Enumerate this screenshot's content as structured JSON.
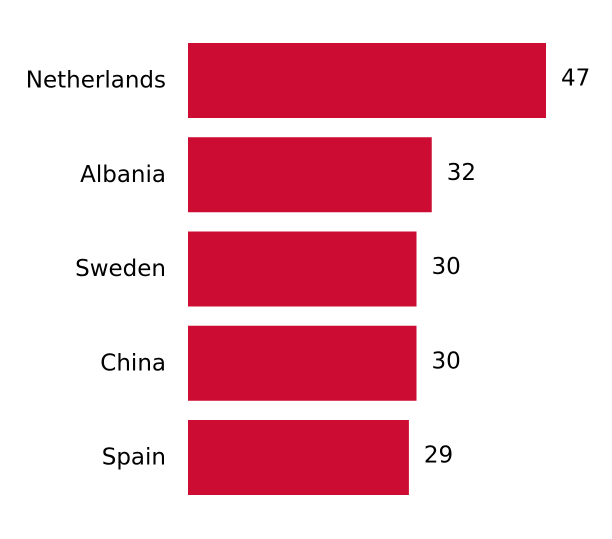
{
  "chart_data": {
    "type": "bar",
    "orientation": "horizontal",
    "categories": [
      "Netherlands",
      "Albania",
      "Sweden",
      "China",
      "Spain"
    ],
    "values": [
      47,
      32,
      30,
      30,
      29
    ],
    "bar_color": "#cc0c33",
    "grid": false,
    "data_labels": true,
    "xlim": [
      0,
      47
    ]
  }
}
